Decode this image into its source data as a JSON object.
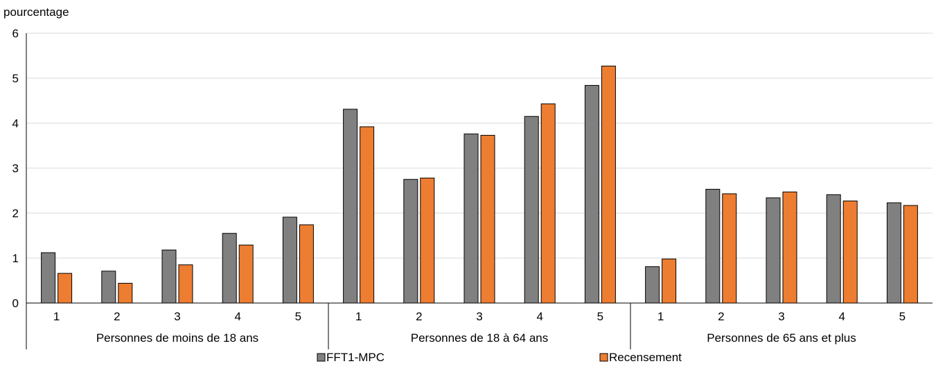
{
  "chart_data": {
    "type": "bar",
    "ylabel": "pourcentage",
    "ylim": [
      0,
      6
    ],
    "yticks": [
      "0",
      "1",
      "2",
      "3",
      "4",
      "5",
      "6"
    ],
    "grid": true,
    "legend_position": "bottom",
    "groups": [
      {
        "label": "Personnes de moins de 18 ans",
        "categories": [
          "1",
          "2",
          "3",
          "4",
          "5"
        ]
      },
      {
        "label": "Personnes de 18 à 64 ans",
        "categories": [
          "1",
          "2",
          "3",
          "4",
          "5"
        ]
      },
      {
        "label": "Personnes de 65 ans et plus",
        "categories": [
          "1",
          "2",
          "3",
          "4",
          "5"
        ]
      }
    ],
    "series": [
      {
        "name": "FFT1-MPC",
        "color": "#808080",
        "values": [
          1.12,
          0.71,
          1.18,
          1.55,
          1.91,
          4.31,
          2.75,
          3.76,
          4.15,
          4.84,
          0.81,
          2.53,
          2.34,
          2.41,
          2.23
        ]
      },
      {
        "name": "Recensement",
        "color": "#ED7D31",
        "values": [
          0.66,
          0.44,
          0.85,
          1.29,
          1.74,
          3.92,
          2.78,
          3.73,
          4.43,
          5.27,
          0.98,
          2.43,
          2.47,
          2.27,
          2.17
        ]
      }
    ]
  }
}
